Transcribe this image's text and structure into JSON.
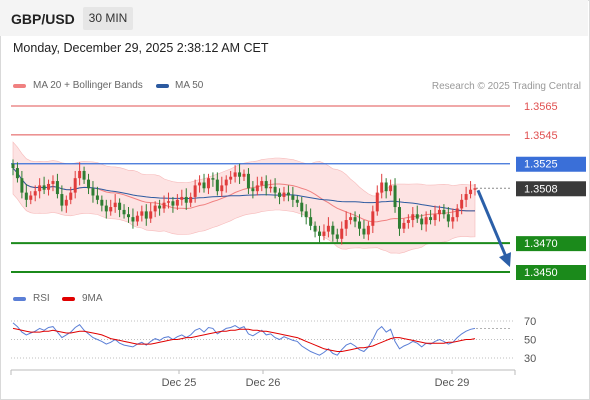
{
  "header": {
    "symbol": "GBP/USD",
    "timeframe": "30 MIN"
  },
  "datetime": "Monday, December 29, 2025 2:38:12 AM CET",
  "legend": {
    "ma20": {
      "label": "MA 20 + Bollinger Bands",
      "color": "#f08080"
    },
    "ma50": {
      "label": "MA 50",
      "color": "#2c5aa0"
    }
  },
  "research": "Research © 2025 Trading Central",
  "rsi_legend": {
    "rsi": {
      "label": "RSI",
      "color": "#5b7fd6"
    },
    "ma9": {
      "label": "9MA",
      "color": "#e00000"
    }
  },
  "colors": {
    "up": "#e03c3c",
    "down": "#2e7d32",
    "resistance": "#e05050",
    "pivot": "#3a6fd8",
    "support": "#1b8a1b",
    "arrow": "#2b5fa8"
  },
  "chart_data": [
    {
      "type": "candlestick",
      "title": "GBP/USD 30 MIN",
      "ylim": [
        1.3441,
        1.3574
      ],
      "levels": [
        {
          "value": 1.3565,
          "label": "1.3565",
          "kind": "resistance"
        },
        {
          "value": 1.3545,
          "label": "1.3545",
          "kind": "resistance"
        },
        {
          "value": 1.3525,
          "label": "1.3525",
          "kind": "pivot"
        },
        {
          "value": 1.3508,
          "label": "1.3508",
          "kind": "last"
        },
        {
          "value": 1.347,
          "label": "1.3470",
          "kind": "support"
        },
        {
          "value": 1.345,
          "label": "1.3450",
          "kind": "support"
        }
      ],
      "last_price": 1.3508,
      "forecast": {
        "from": 1.3508,
        "to": 1.3452
      },
      "x_labels": [
        "Dec 25",
        "Dec 26",
        "Dec 29"
      ],
      "closes": [
        1.3522,
        1.3515,
        1.3505,
        1.35,
        1.3503,
        1.3506,
        1.351,
        1.3507,
        1.3511,
        1.3513,
        1.3504,
        1.3496,
        1.35,
        1.3505,
        1.3515,
        1.352,
        1.3514,
        1.3508,
        1.3503,
        1.35,
        1.3496,
        1.3492,
        1.3495,
        1.3498,
        1.3493,
        1.349,
        1.3488,
        1.3485,
        1.3489,
        1.3492,
        1.3487,
        1.3492,
        1.3496,
        1.3494,
        1.3498,
        1.3499,
        1.3496,
        1.35,
        1.3502,
        1.3498,
        1.3502,
        1.351,
        1.3512,
        1.3508,
        1.3515,
        1.3514,
        1.3506,
        1.351,
        1.3514,
        1.3516,
        1.3519,
        1.3516,
        1.3518,
        1.3508,
        1.3506,
        1.351,
        1.3513,
        1.3508,
        1.3509,
        1.3505,
        1.3502,
        1.3505,
        1.3503,
        1.35,
        1.3498,
        1.3492,
        1.3488,
        1.3482,
        1.3478,
        1.3475,
        1.3478,
        1.3482,
        1.3476,
        1.3473,
        1.348,
        1.3486,
        1.3488,
        1.3485,
        1.348,
        1.3476,
        1.3482,
        1.3492,
        1.3505,
        1.3512,
        1.3506,
        1.351,
        1.3495,
        1.348,
        1.3484,
        1.3486,
        1.349,
        1.3487,
        1.3483,
        1.3488,
        1.3486,
        1.349,
        1.3493,
        1.349,
        1.3485,
        1.3488,
        1.3494,
        1.35,
        1.3504,
        1.3507,
        1.3508
      ],
      "rsi": {
        "ylim": [
          20,
          80
        ],
        "levels": [
          70,
          50,
          30
        ],
        "values": [
          68,
          64,
          58,
          55,
          57,
          59,
          62,
          60,
          63,
          64,
          58,
          52,
          55,
          58,
          63,
          66,
          60,
          56,
          52,
          50,
          48,
          45,
          47,
          50,
          46,
          44,
          43,
          42,
          45,
          47,
          44,
          48,
          51,
          49,
          52,
          53,
          50,
          53,
          55,
          52,
          55,
          60,
          62,
          58,
          63,
          62,
          56,
          59,
          62,
          63,
          65,
          62,
          64,
          56,
          54,
          57,
          60,
          55,
          56,
          52,
          50,
          53,
          51,
          49,
          48,
          43,
          40,
          37,
          35,
          33,
          36,
          40,
          35,
          33,
          39,
          44,
          46,
          43,
          39,
          37,
          42,
          50,
          60,
          64,
          58,
          61,
          48,
          40,
          43,
          45,
          48,
          46,
          42,
          46,
          45,
          48,
          50,
          48,
          45,
          47,
          52,
          56,
          59,
          61,
          62
        ],
        "ma9": [
          62,
          61,
          60,
          59,
          58,
          58,
          58,
          59,
          59,
          60,
          59,
          58,
          57,
          57,
          58,
          59,
          59,
          58,
          57,
          56,
          55,
          53,
          51,
          50,
          49,
          48,
          47,
          46,
          45,
          45,
          45,
          45,
          46,
          47,
          48,
          49,
          50,
          50,
          51,
          52,
          52,
          53,
          54,
          55,
          56,
          57,
          58,
          59,
          59,
          60,
          60,
          61,
          61,
          61,
          60,
          60,
          59,
          59,
          58,
          57,
          56,
          55,
          54,
          53,
          52,
          50,
          48,
          46,
          44,
          42,
          40,
          39,
          38,
          37,
          37,
          38,
          39,
          40,
          41,
          41,
          42,
          43,
          45,
          47,
          49,
          51,
          52,
          52,
          51,
          50,
          49,
          48,
          47,
          46,
          46,
          46,
          46,
          46,
          47,
          47,
          48,
          49,
          50,
          50,
          51
        ]
      }
    }
  ]
}
